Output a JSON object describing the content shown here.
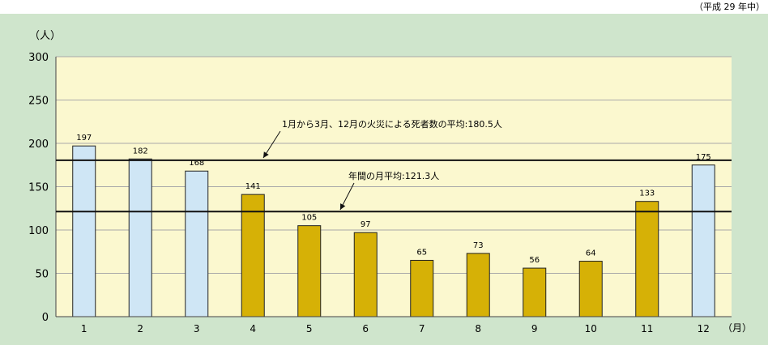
{
  "header": {
    "note": "（平成 29 年中）"
  },
  "chart_data": {
    "type": "bar",
    "y_unit_label": "（人）",
    "x_unit_label": "（月）",
    "categories": [
      "1",
      "2",
      "3",
      "4",
      "5",
      "6",
      "7",
      "8",
      "9",
      "10",
      "11",
      "12"
    ],
    "values": [
      197,
      182,
      168,
      141,
      105,
      97,
      65,
      73,
      56,
      64,
      133,
      175
    ],
    "bar_colors": [
      "#cfe6f5",
      "#cfe6f5",
      "#cfe6f5",
      "#d6b106",
      "#d6b106",
      "#d6b106",
      "#d6b106",
      "#d6b106",
      "#d6b106",
      "#d6b106",
      "#d6b106",
      "#cfe6f5"
    ],
    "ylim": [
      0,
      300
    ],
    "yticks": [
      0,
      50,
      100,
      150,
      200,
      250,
      300
    ],
    "grid": true,
    "reference_lines": [
      {
        "value": 180.5,
        "label": "1月から3月、12月の火災による死者数の平均:180.5人"
      },
      {
        "value": 121.3,
        "label": "年間の月平均:121.3人"
      }
    ],
    "colors": {
      "outer_bg": "#cfe5cc",
      "plot_bg": "#fbf8cf",
      "grid": "#a9a9a9",
      "bar_stroke": "#222222"
    }
  }
}
